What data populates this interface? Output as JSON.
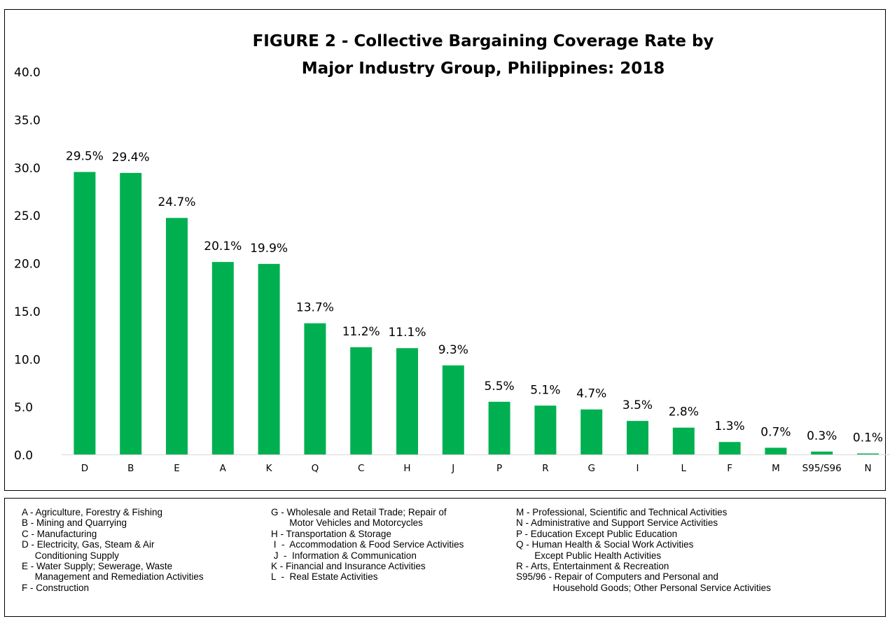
{
  "chart_data": {
    "type": "bar",
    "title_line1": "FIGURE 2 - Collective Bargaining Coverage Rate by",
    "title_line2": "Major Industry Group, Philippines:  2018",
    "categories": [
      "D",
      "B",
      "E",
      "A",
      "K",
      "Q",
      "C",
      "H",
      "J",
      "P",
      "R",
      "G",
      "I",
      "L",
      "F",
      "M",
      "S95/S96",
      "N"
    ],
    "values": [
      29.5,
      29.4,
      24.7,
      20.1,
      19.9,
      13.7,
      11.2,
      11.1,
      9.3,
      5.5,
      5.1,
      4.7,
      3.5,
      2.8,
      1.3,
      0.7,
      0.3,
      0.1
    ],
    "data_labels": [
      "29.5%",
      "29.4%",
      "24.7%",
      "20.1%",
      "19.9%",
      "13.7%",
      "11.2%",
      "11.1%",
      "9.3%",
      "5.5%",
      "5.1%",
      "4.7%",
      "3.5%",
      "2.8%",
      "1.3%",
      "0.7%",
      "0.3%",
      "0.1%"
    ],
    "y_ticks": [
      "0.0",
      "5.0",
      "10.0",
      "15.0",
      "20.0",
      "25.0",
      "30.0",
      "35.0",
      "40.0"
    ],
    "ylim": [
      0,
      40
    ],
    "bar_color": "#00b050",
    "grid": false,
    "legend": "below"
  },
  "legend": {
    "col1": [
      "A - Agriculture, Forestry & Fishing",
      "B - Mining and Quarrying",
      "C - Manufacturing",
      "D - Electricity, Gas, Steam & Air",
      "     Conditioning Supply",
      "E - Water Supply; Sewerage, Waste",
      "     Management and Remediation Activities",
      "F - Construction"
    ],
    "col2": [
      "G - Wholesale and Retail Trade; Repair of",
      "       Motor Vehicles and Motorcycles",
      "H - Transportation & Storage",
      " I  -  Accommodation & Food Service Activities",
      " J  -  Information & Communication",
      "K - Financial and Insurance Activities",
      "L  -  Real Estate Activities"
    ],
    "col3": [
      "M - Professional, Scientific and Technical Activities",
      "N - Administrative and Support Service Activities",
      "P - Education Except Public Education",
      "Q - Human Health & Social Work Activities",
      "       Except Public Health Activities",
      "R - Arts, Entertainment & Recreation",
      "S95/96 - Repair of Computers and Personal and",
      "              Household Goods; Other Personal Service Activities"
    ]
  }
}
